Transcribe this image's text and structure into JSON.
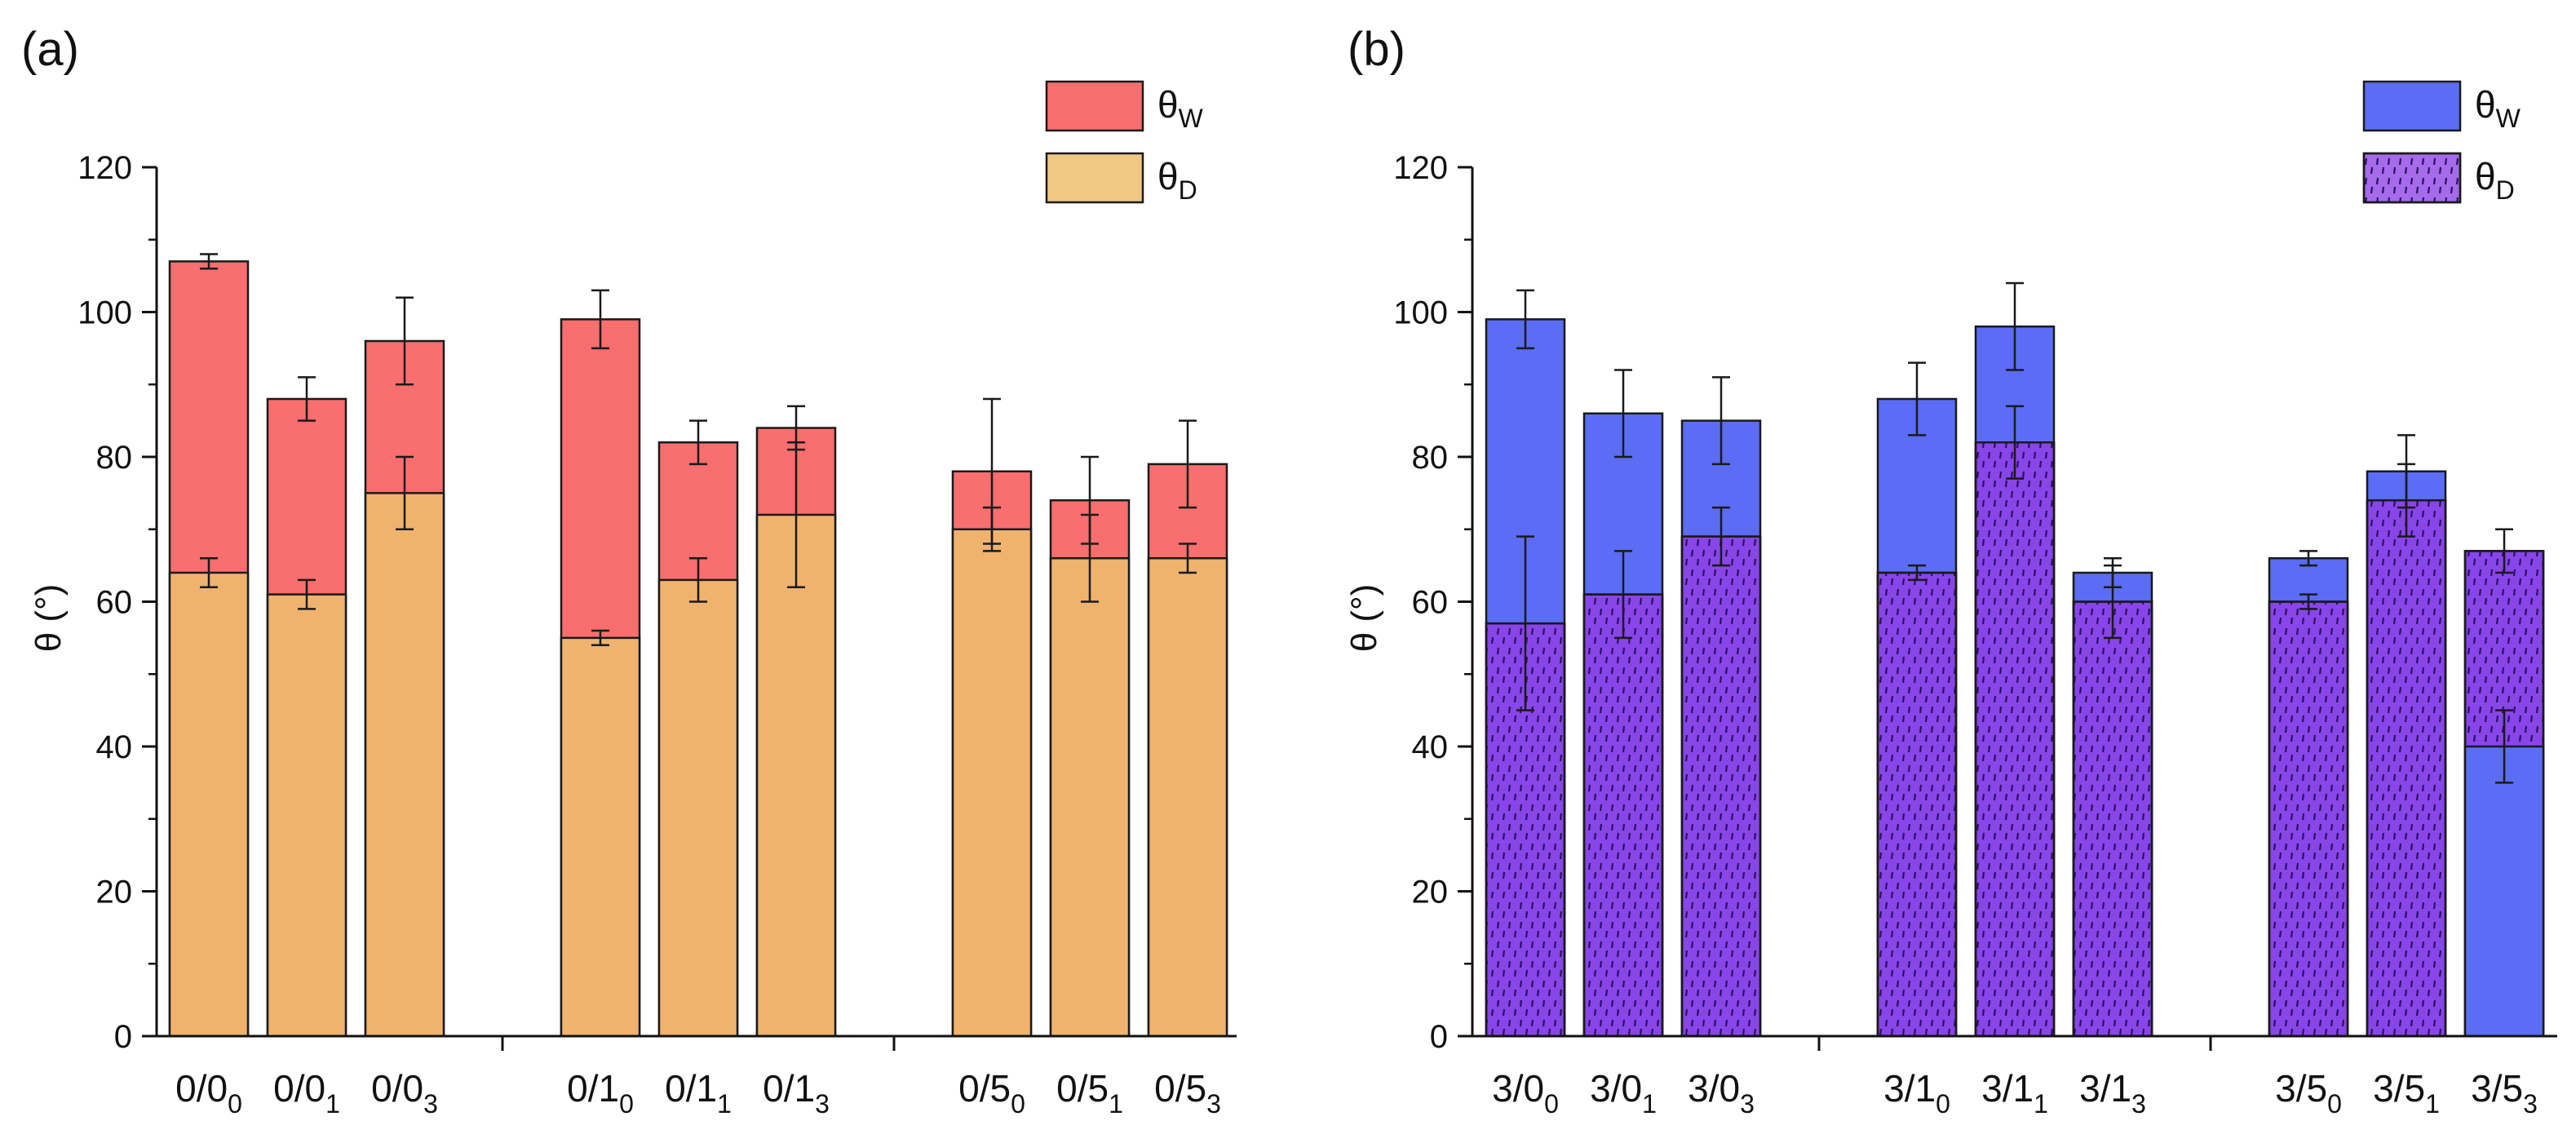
{
  "figure": {
    "panels": [
      {
        "label": "(a)",
        "ylabel": "θ (°)",
        "legend": [
          {
            "symbol": "θ",
            "sub": "W",
            "color": "#F96E6E",
            "pattern": false
          },
          {
            "symbol": "θ",
            "sub": "D",
            "color": "#F0C785",
            "pattern": false
          }
        ]
      },
      {
        "label": "(b)",
        "ylabel": "θ (°)",
        "legend": [
          {
            "symbol": "θ",
            "sub": "W",
            "color": "#5B6CF5",
            "pattern": false
          },
          {
            "symbol": "θ",
            "sub": "D",
            "color": "#A56BEB",
            "pattern": true
          }
        ]
      }
    ]
  },
  "chart_data": [
    {
      "type": "bar",
      "title": "(a)",
      "xlabel": "",
      "ylabel": "θ (°)",
      "ylim": [
        0,
        120
      ],
      "yticks": [
        0,
        20,
        40,
        60,
        80,
        100,
        120
      ],
      "grid": false,
      "legend_position": "top-right",
      "overlap": true,
      "categories": [
        "0/0_0",
        "0/0_1",
        "0/0_3",
        "0/1_0",
        "0/1_1",
        "0/1_3",
        "0/5_0",
        "0/5_1",
        "0/5_3"
      ],
      "category_labels": [
        {
          "main": "0/0",
          "sub": "0"
        },
        {
          "main": "0/0",
          "sub": "1"
        },
        {
          "main": "0/0",
          "sub": "3"
        },
        {
          "main": "0/1",
          "sub": "0"
        },
        {
          "main": "0/1",
          "sub": "1"
        },
        {
          "main": "0/1",
          "sub": "3"
        },
        {
          "main": "0/5",
          "sub": "0"
        },
        {
          "main": "0/5",
          "sub": "1"
        },
        {
          "main": "0/5",
          "sub": "3"
        }
      ],
      "groups": [
        [
          0,
          1,
          2
        ],
        [
          3,
          4,
          5
        ],
        [
          6,
          7,
          8
        ]
      ],
      "series": [
        {
          "name": "θW",
          "color": "#F96E6E",
          "pattern": false,
          "values": [
            107,
            88,
            96,
            99,
            82,
            84,
            78,
            74,
            79
          ],
          "errors": [
            1,
            3,
            6,
            4,
            3,
            3,
            10,
            6,
            6
          ]
        },
        {
          "name": "θD",
          "color": "#EFB36E",
          "pattern": false,
          "values": [
            64,
            61,
            75,
            55,
            63,
            72,
            70,
            66,
            66
          ],
          "errors": [
            2,
            2,
            5,
            1,
            3,
            10,
            3,
            6,
            2
          ]
        }
      ]
    },
    {
      "type": "bar",
      "title": "(b)",
      "xlabel": "",
      "ylabel": "θ (°)",
      "ylim": [
        0,
        120
      ],
      "yticks": [
        0,
        20,
        40,
        60,
        80,
        100,
        120
      ],
      "grid": false,
      "legend_position": "top-right",
      "overlap": true,
      "categories": [
        "3/0_0",
        "3/0_1",
        "3/0_3",
        "3/1_0",
        "3/1_1",
        "3/1_3",
        "3/5_0",
        "3/5_1",
        "3/5_3"
      ],
      "category_labels": [
        {
          "main": "3/0",
          "sub": "0"
        },
        {
          "main": "3/0",
          "sub": "1"
        },
        {
          "main": "3/0",
          "sub": "3"
        },
        {
          "main": "3/1",
          "sub": "0"
        },
        {
          "main": "3/1",
          "sub": "1"
        },
        {
          "main": "3/1",
          "sub": "3"
        },
        {
          "main": "3/5",
          "sub": "0"
        },
        {
          "main": "3/5",
          "sub": "1"
        },
        {
          "main": "3/5",
          "sub": "3"
        }
      ],
      "groups": [
        [
          0,
          1,
          2
        ],
        [
          3,
          4,
          5
        ],
        [
          6,
          7,
          8
        ]
      ],
      "series": [
        {
          "name": "θW",
          "color": "#5B6CF5",
          "pattern": false,
          "values": [
            99,
            86,
            85,
            88,
            98,
            64,
            66,
            78,
            40
          ],
          "errors": [
            4,
            6,
            6,
            5,
            6,
            2,
            1,
            5,
            5
          ]
        },
        {
          "name": "θD",
          "color": "#8845E8",
          "pattern": true,
          "values": [
            57,
            61,
            69,
            64,
            82,
            60,
            60,
            74,
            67
          ],
          "errors": [
            12,
            6,
            4,
            1,
            5,
            5,
            1,
            5,
            3
          ]
        }
      ]
    }
  ]
}
